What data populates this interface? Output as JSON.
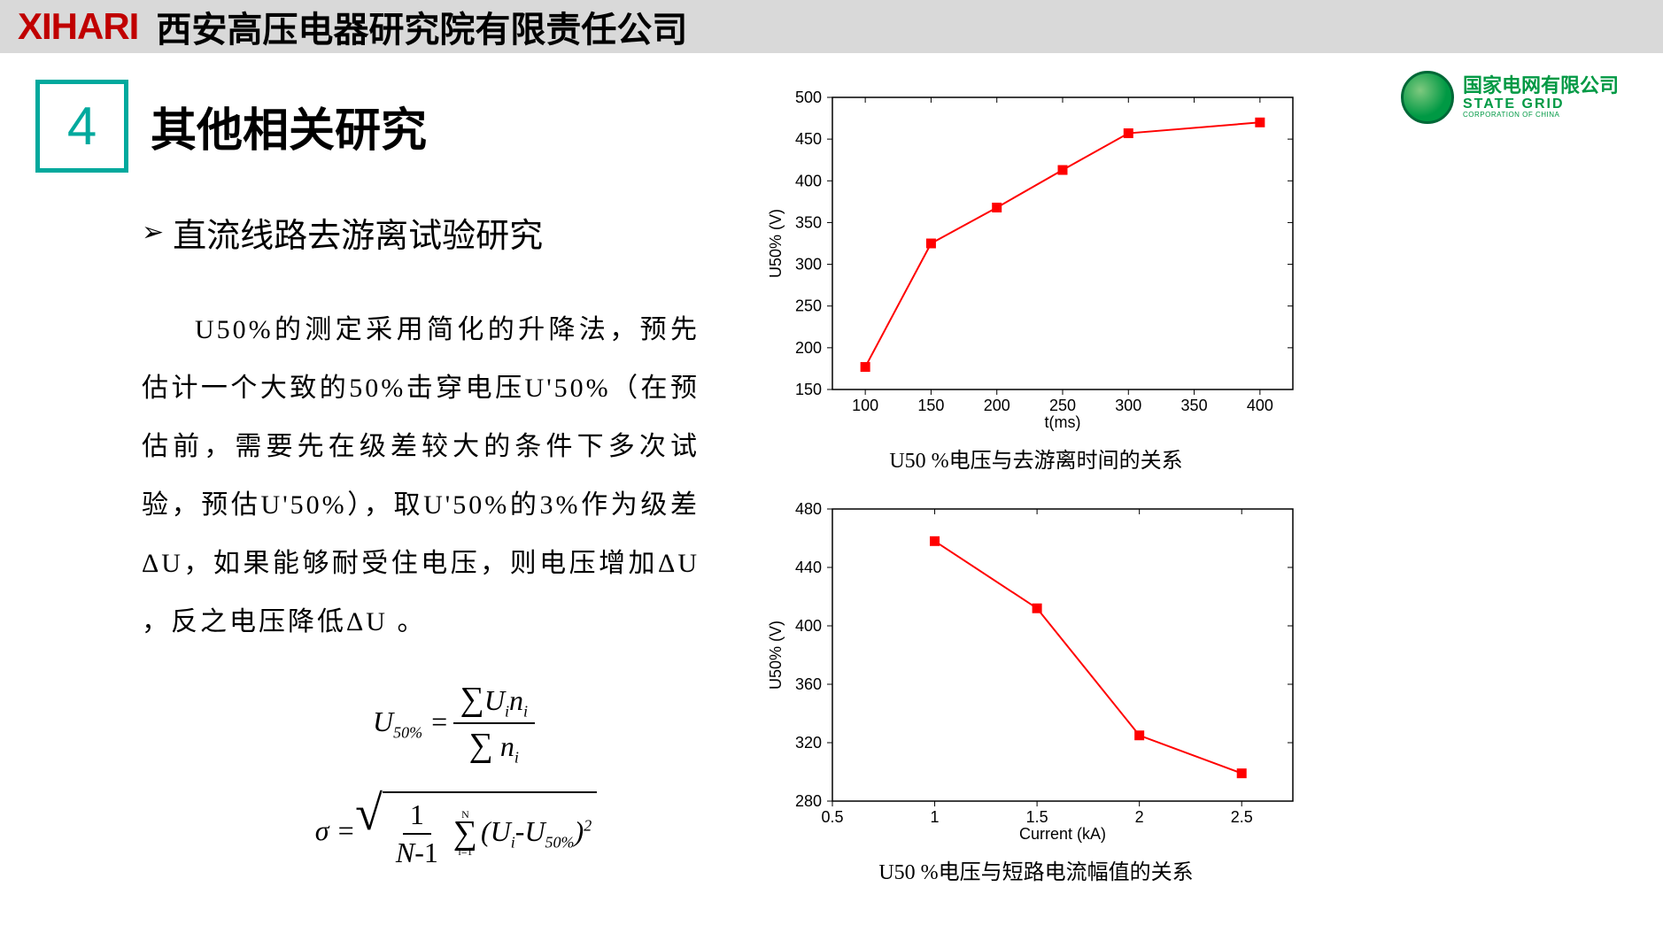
{
  "header": {
    "logo": "XIHARI",
    "company": "西安高压电器研究院有限责任公司"
  },
  "section": {
    "number": "4",
    "title": "其他相关研究"
  },
  "bullet": "直流线路去游离试验研究",
  "body": "U50%的测定采用简化的升降法，预先估计一个大致的50%击穿电压U'50%（在预估前，需要先在级差较大的条件下多次试验，预估U'50%），取U'50%的3%作为级差ΔU，如果能够耐受住电压，则电压增加ΔU ，反之电压降低ΔU 。",
  "state_grid": {
    "cn": "国家电网有限公司",
    "en": "STATE GRID",
    "en2": "CORPORATION OF CHINA"
  },
  "chart1": {
    "type": "line",
    "caption": "U50 %电压与去游离时间的关系",
    "xlabel": "t(ms)",
    "ylabel": "U50% (V)",
    "line_color": "#ff0000",
    "marker_color": "#ff0000",
    "background": "#ffffff",
    "x": [
      100,
      150,
      200,
      250,
      300,
      400
    ],
    "y": [
      177,
      325,
      368,
      413,
      457,
      470
    ],
    "xlim": [
      75,
      425
    ],
    "ylim": [
      150,
      500
    ],
    "xticks": [
      100,
      150,
      200,
      250,
      300,
      350,
      400
    ],
    "yticks": [
      150,
      200,
      250,
      300,
      350,
      400,
      450,
      500
    ],
    "marker_size": 5,
    "line_width": 2,
    "axis_color": "#000000",
    "tick_fontsize": 18,
    "label_fontsize": 18
  },
  "chart2": {
    "type": "line",
    "caption": "U50 %电压与短路电流幅值的关系",
    "xlabel": "Current (kA)",
    "ylabel": "U50% (V)",
    "line_color": "#ff0000",
    "marker_color": "#ff0000",
    "background": "#ffffff",
    "x": [
      1.0,
      1.5,
      2.0,
      2.5
    ],
    "y": [
      458,
      412,
      325,
      299
    ],
    "xlim": [
      0.5,
      2.75
    ],
    "ylim": [
      280,
      480
    ],
    "xticks": [
      0.5,
      1.0,
      1.5,
      2.0,
      2.5
    ],
    "yticks": [
      280,
      320,
      360,
      400,
      440,
      480
    ],
    "marker_size": 5,
    "line_width": 2,
    "axis_color": "#000000",
    "tick_fontsize": 18,
    "label_fontsize": 18
  }
}
